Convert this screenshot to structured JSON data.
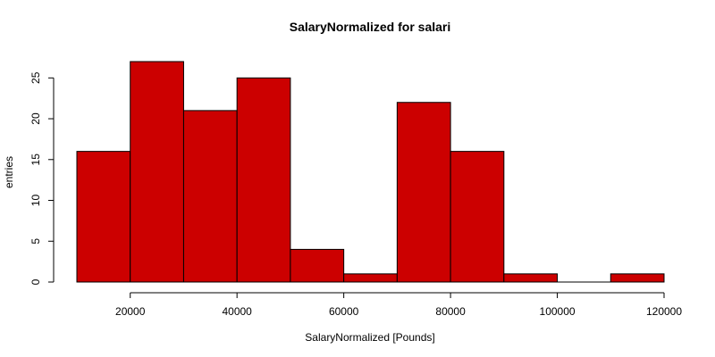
{
  "chart_data": {
    "type": "bar",
    "title": "SalaryNormalized for salari",
    "xlabel": "SalaryNormalized [Pounds]",
    "ylabel": "entries",
    "bar_color": "#cc0000",
    "border_color": "#000000",
    "bins": [
      {
        "start": 10000,
        "end": 20000,
        "count": 16
      },
      {
        "start": 20000,
        "end": 30000,
        "count": 27
      },
      {
        "start": 30000,
        "end": 40000,
        "count": 21
      },
      {
        "start": 40000,
        "end": 50000,
        "count": 25
      },
      {
        "start": 50000,
        "end": 60000,
        "count": 4
      },
      {
        "start": 60000,
        "end": 70000,
        "count": 1
      },
      {
        "start": 70000,
        "end": 80000,
        "count": 22
      },
      {
        "start": 80000,
        "end": 90000,
        "count": 16
      },
      {
        "start": 90000,
        "end": 100000,
        "count": 1
      },
      {
        "start": 100000,
        "end": 110000,
        "count": 0
      },
      {
        "start": 110000,
        "end": 120000,
        "count": 1
      }
    ],
    "xlim": [
      10000,
      120000
    ],
    "ylim": [
      0,
      27
    ],
    "x_ticks": [
      20000,
      40000,
      60000,
      80000,
      100000,
      120000
    ],
    "x_tick_labels": [
      "20000",
      "40000",
      "60000",
      "80000",
      "100000",
      "120000"
    ],
    "y_ticks": [
      0,
      5,
      10,
      15,
      20,
      25
    ],
    "y_tick_labels": [
      "0",
      "5",
      "10",
      "15",
      "20",
      "25"
    ],
    "grid": false,
    "legend": "none"
  }
}
